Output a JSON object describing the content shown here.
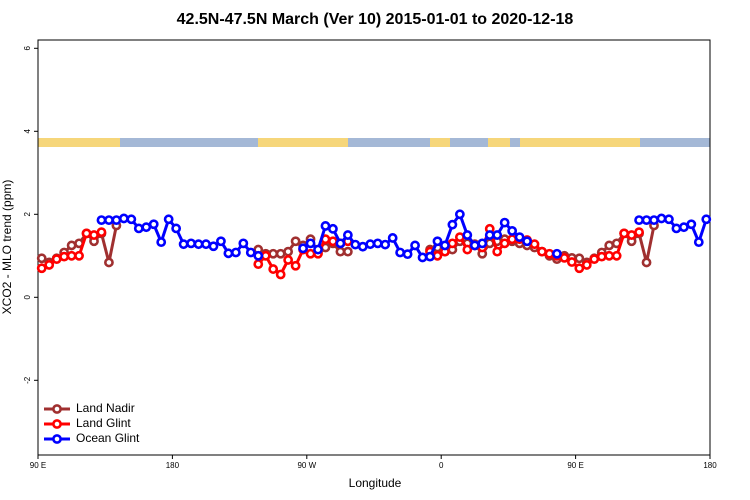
{
  "chart_data": {
    "type": "line",
    "title": "42.5N-47.5N March (Ver 10)   2015-01-01 to 2020-12-18",
    "x_label": "Longitude",
    "y_label": "XCO2 - MLO trend (ppm)",
    "xlim": [
      90,
      540
    ],
    "xticks": [
      {
        "value": 90,
        "label": "90 E"
      },
      180,
      {
        "value": 270,
        "label": "90 W"
      },
      {
        "value": 360,
        "label": "0"
      },
      {
        "value": 450,
        "label": "90 E"
      },
      {
        "value": 540,
        "label": "180"
      }
    ],
    "ylim": [
      -3.8,
      6.2
    ],
    "yticks": [
      -2,
      0,
      2,
      4,
      6
    ],
    "legend": "bottom-left",
    "x": [
      92.5,
      97.5,
      102.5,
      107.5,
      112.5,
      117.5,
      122.5,
      127.5,
      132.5,
      137.5,
      142.5,
      147.5,
      152.5,
      157.5,
      162.5,
      167.5,
      172.5,
      177.5,
      182.5,
      187.5,
      192.5,
      197.5,
      202.5,
      207.5,
      212.5,
      217.5,
      222.5,
      227.5,
      232.5,
      237.5,
      242.5,
      247.5,
      252.5,
      257.5,
      262.5,
      267.5,
      272.5,
      277.5,
      282.5,
      287.5,
      292.5,
      297.5,
      302.5,
      307.5,
      312.5,
      317.5,
      322.5,
      327.5,
      332.5,
      337.5,
      342.5,
      347.5,
      352.5,
      357.5,
      362.5,
      367.5,
      372.5,
      377.5,
      382.5,
      387.5,
      392.5,
      397.5,
      402.5,
      407.5,
      412.5,
      417.5,
      422.5,
      427.5,
      432.5,
      437.5,
      442.5,
      447.5,
      452.5,
      457.5,
      462.5,
      467.5,
      472.5,
      477.5,
      482.5,
      487.5,
      492.5,
      497.5,
      502.5,
      507.5,
      512.5,
      517.5,
      522.5,
      527.5,
      532.5,
      537.5
    ],
    "series": [
      {
        "name": "Land Nadir",
        "color": "#a03030",
        "values": [
          0.94,
          0.84,
          0.94,
          1.08,
          1.25,
          1.3,
          1.54,
          1.35,
          1.54,
          0.84,
          1.73,
          null,
          null,
          null,
          null,
          null,
          null,
          null,
          null,
          null,
          null,
          null,
          null,
          null,
          null,
          null,
          null,
          null,
          null,
          1.15,
          1.05,
          1.05,
          1.05,
          1.1,
          1.35,
          1.25,
          1.4,
          1.1,
          1.2,
          1.3,
          1.1,
          1.1,
          null,
          null,
          null,
          null,
          null,
          null,
          null,
          null,
          null,
          null,
          1.15,
          1.2,
          1.1,
          1.15,
          1.35,
          1.3,
          1.28,
          1.05,
          1.3,
          1.35,
          1.4,
          1.35,
          1.3,
          1.25,
          1.2,
          1.1,
          1.0,
          0.92,
          1.0,
          0.95,
          0.94,
          0.84,
          0.94,
          1.08,
          1.25,
          1.3,
          1.54,
          1.35,
          1.54,
          0.84,
          1.73,
          null,
          null,
          null,
          null,
          null,
          null,
          null
        ]
      },
      {
        "name": "Land Glint",
        "color": "#ff0000",
        "values": [
          0.7,
          0.78,
          0.92,
          0.98,
          1.0,
          1.0,
          1.54,
          1.5,
          1.57,
          null,
          null,
          null,
          null,
          null,
          null,
          null,
          null,
          null,
          null,
          null,
          null,
          null,
          null,
          null,
          null,
          null,
          null,
          null,
          null,
          0.8,
          1.0,
          0.68,
          0.55,
          0.9,
          0.76,
          1.15,
          1.05,
          1.05,
          1.4,
          1.35,
          1.3,
          1.35,
          null,
          null,
          null,
          null,
          null,
          null,
          null,
          null,
          null,
          null,
          1.1,
          1.0,
          1.1,
          1.3,
          1.45,
          1.15,
          1.25,
          1.2,
          1.65,
          1.1,
          1.3,
          1.4,
          1.4,
          1.38,
          1.28,
          1.1,
          1.05,
          1.0,
          0.95,
          0.85,
          0.7,
          0.78,
          0.92,
          0.98,
          1.0,
          1.0,
          1.54,
          1.5,
          1.57,
          null,
          null,
          null,
          null,
          null,
          null,
          null,
          null,
          null
        ]
      },
      {
        "name": "Ocean Glint",
        "color": "#0000ff",
        "values": [
          null,
          null,
          null,
          null,
          null,
          null,
          null,
          null,
          1.86,
          1.86,
          1.86,
          1.9,
          1.88,
          1.66,
          1.69,
          1.76,
          1.33,
          1.88,
          1.66,
          1.28,
          1.3,
          1.28,
          1.28,
          1.23,
          1.35,
          1.06,
          1.08,
          1.3,
          1.08,
          1.0,
          null,
          null,
          null,
          null,
          null,
          1.18,
          1.3,
          1.15,
          1.72,
          1.65,
          1.3,
          1.5,
          1.27,
          1.22,
          1.28,
          1.3,
          1.27,
          1.43,
          1.08,
          1.04,
          1.25,
          0.96,
          0.98,
          1.35,
          1.25,
          1.75,
          2.0,
          1.5,
          1.25,
          1.3,
          1.5,
          1.5,
          1.8,
          1.6,
          1.45,
          1.35,
          null,
          null,
          null,
          1.05,
          null,
          null,
          null,
          null,
          null,
          null,
          null,
          null,
          null,
          null,
          1.86,
          1.86,
          1.86,
          1.9,
          1.88,
          1.66,
          1.69,
          1.76,
          1.33,
          1.88
        ]
      }
    ]
  }
}
